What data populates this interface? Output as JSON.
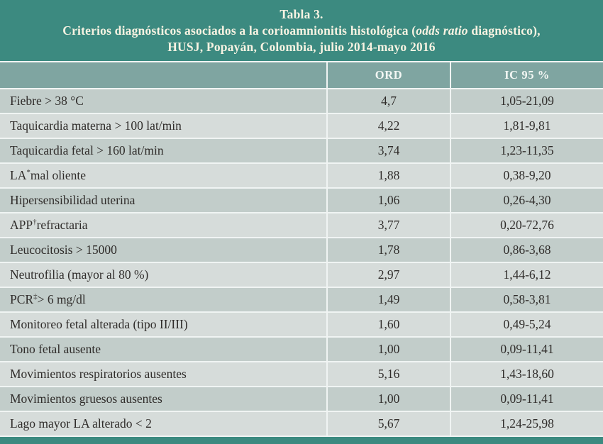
{
  "title": {
    "line1": "Tabla 3.",
    "line2_pre": "Criterios diagnósticos asociados a la corioamnionitis histológica (",
    "line2_italic": "odds ratio",
    "line2_post": " diagnóstico),",
    "line3": "HUSJ, Popayán, Colombia, julio 2014-mayo 2016"
  },
  "colors": {
    "teal": "#3c8a80",
    "header_teal": "#7fa5a1",
    "row_dark": "#c2cdca",
    "row_light": "#d6dcda",
    "divider": "#f0f4f3",
    "title_text": "#f8f3e2",
    "header_text": "#f3f7f4",
    "body_text": "#302d2b"
  },
  "table": {
    "headers": {
      "criterion": "",
      "ord": "ORD",
      "ic95": "IC 95 %"
    },
    "rows": [
      {
        "pre": "Fiebre > 38 °C",
        "sup": "",
        "post": "",
        "ord": "4,7",
        "ic": "1,05-21,09"
      },
      {
        "pre": "Taquicardia materna > 100 lat/min",
        "sup": "",
        "post": "",
        "ord": "4,22",
        "ic": "1,81-9,81"
      },
      {
        "pre": "Taquicardia fetal > 160 lat/min",
        "sup": "",
        "post": "",
        "ord": "3,74",
        "ic": "1,23-11,35"
      },
      {
        "pre": "LA",
        "sup": "*",
        "post": " mal oliente",
        "ord": "1,88",
        "ic": "0,38-9,20"
      },
      {
        "pre": "Hipersensibilidad uterina",
        "sup": "",
        "post": "",
        "ord": "1,06",
        "ic": "0,26-4,30"
      },
      {
        "pre": "APP",
        "sup": "†",
        "post": " refractaria",
        "ord": "3,77",
        "ic": "0,20-72,76"
      },
      {
        "pre": "Leucocitosis > 15000",
        "sup": "",
        "post": "",
        "ord": "1,78",
        "ic": "0,86-3,68"
      },
      {
        "pre": "Neutrofilia (mayor al 80 %)",
        "sup": "",
        "post": "",
        "ord": "2,97",
        "ic": "1,44-6,12"
      },
      {
        "pre": "PCR",
        "sup": "‡",
        "post": " > 6 mg/dl",
        "ord": "1,49",
        "ic": "0,58-3,81"
      },
      {
        "pre": "Monitoreo fetal alterada (tipo II/III)",
        "sup": "",
        "post": "",
        "ord": "1,60",
        "ic": "0,49-5,24"
      },
      {
        "pre": "Tono fetal ausente",
        "sup": "",
        "post": "",
        "ord": "1,00",
        "ic": "0,09-11,41"
      },
      {
        "pre": "Movimientos respiratorios ausentes",
        "sup": "",
        "post": "",
        "ord": "5,16",
        "ic": "1,43-18,60"
      },
      {
        "pre": "Movimientos gruesos ausentes",
        "sup": "",
        "post": "",
        "ord": "1,00",
        "ic": "0,09-11,41"
      },
      {
        "pre": "Lago mayor LA alterado < 2",
        "sup": "",
        "post": "",
        "ord": "5,67",
        "ic": "1,24-25,98"
      }
    ]
  }
}
